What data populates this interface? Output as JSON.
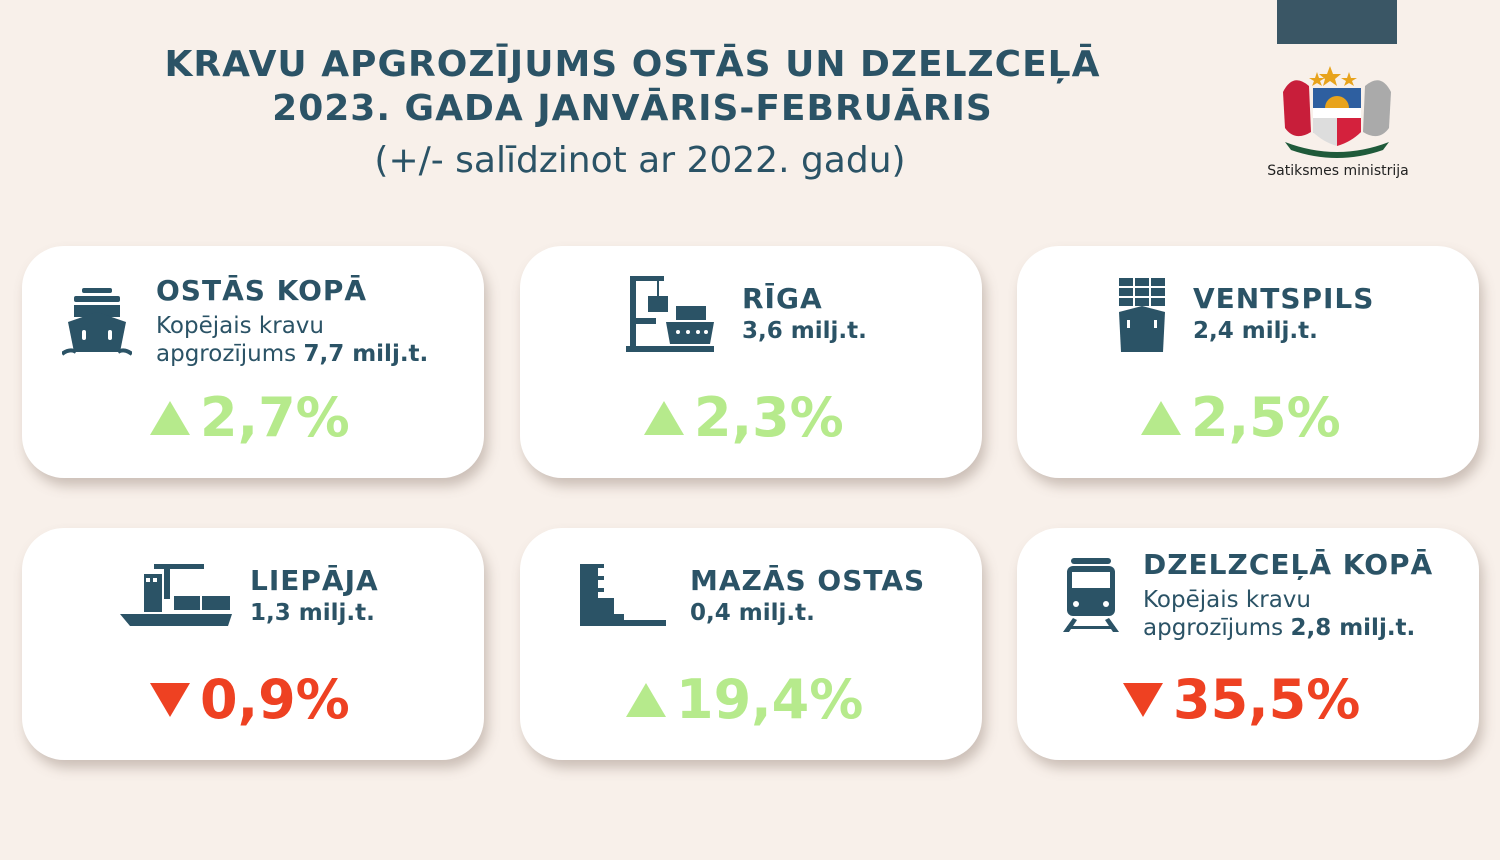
{
  "header": {
    "title_line1": "KRAVU APGROZĪJUMS OSTĀS UN DZELZCEĻĀ",
    "title_line2": "2023. GADA JANVĀRIS-FEBRUĀRIS",
    "subtitle": "(+/- salīdzinot ar 2022. gadu)",
    "ministry": "Satiksmes ministrija"
  },
  "colors": {
    "navy": "#2b5366",
    "up": "#b6ea8c",
    "down": "#ee4122",
    "background": "#f8f0ea"
  },
  "cards": [
    {
      "name": "OSTĀS KOPĀ",
      "desc": "Kopējais kravu",
      "desc2": "apgrozījums",
      "amount": "7,7 milj.t.",
      "change": "2,7%",
      "direction": "up",
      "icon": "ship-front-icon"
    },
    {
      "name": "RĪGA",
      "amount": "3,6 milj.t.",
      "change": "2,3%",
      "direction": "up",
      "icon": "port-crane-icon"
    },
    {
      "name": "VENTSPILS",
      "amount": "2,4 milj.t.",
      "change": "2,5%",
      "direction": "up",
      "icon": "container-ship-icon"
    },
    {
      "name": "LIEPĀJA",
      "amount": "1,3 milj.t.",
      "change": "0,9%",
      "direction": "down",
      "icon": "cargo-ship-icon"
    },
    {
      "name": "MAZĀS OSTAS",
      "amount": "0,4 milj.t.",
      "change": "19,4%",
      "direction": "up",
      "icon": "small-port-icon"
    },
    {
      "name": "DZELZCEĻĀ KOPĀ",
      "desc": "Kopējais kravu",
      "desc2": "apgrozījums",
      "amount": "2,8 milj.t.",
      "change": "35,5%",
      "direction": "down",
      "icon": "train-icon"
    }
  ]
}
